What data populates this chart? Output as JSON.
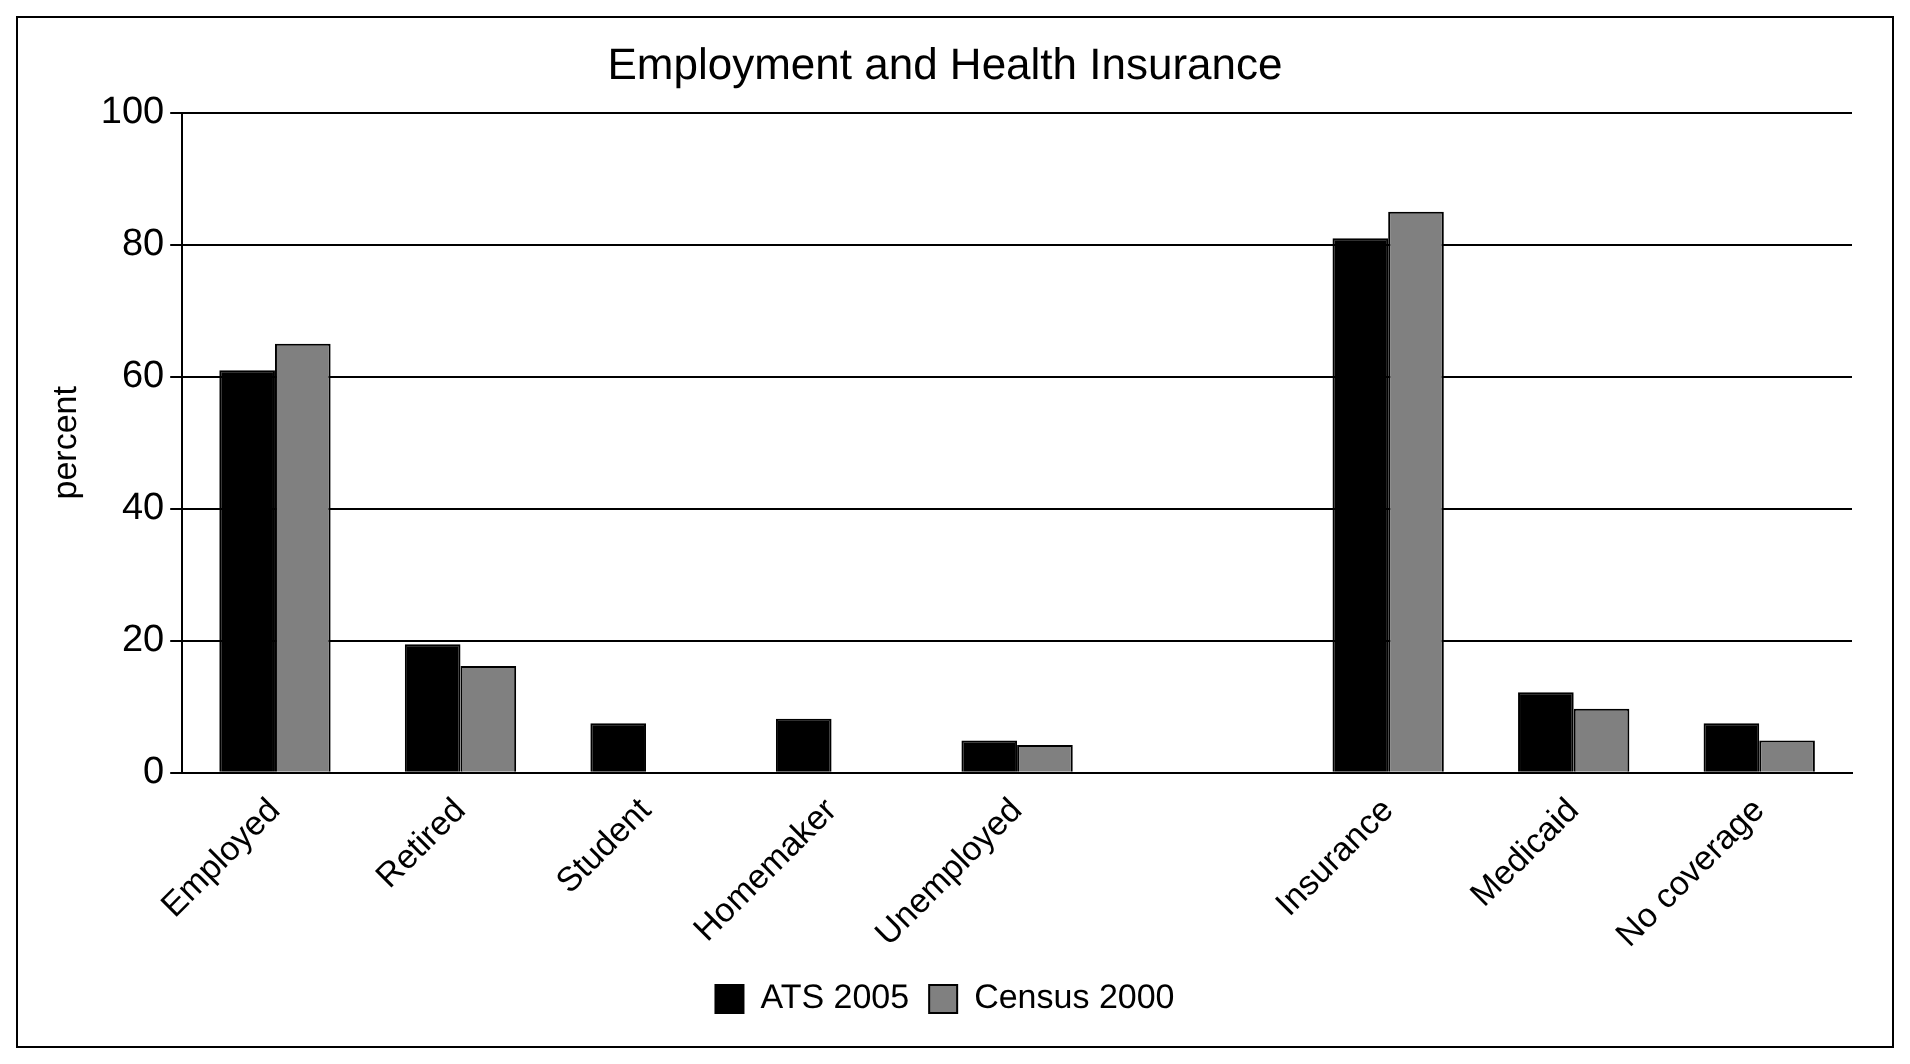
{
  "chart_data": {
    "type": "bar",
    "title": "Employment and Health Insurance",
    "ylabel": "percent",
    "categories": [
      "Employed",
      "Retired",
      "Student",
      "Homemaker",
      "Unemployed",
      null,
      "Insurance",
      "Medicaid",
      "No coverage"
    ],
    "series": [
      {
        "name": "ATS 2005",
        "color": "#000000",
        "values": [
          61,
          19.5,
          7.5,
          8.2,
          4.9,
          null,
          81,
          12.2,
          7.5
        ]
      },
      {
        "name": "Census 2000",
        "color": "#808080",
        "values": [
          65,
          16.2,
          null,
          null,
          4.2,
          null,
          85,
          9.7,
          4.9
        ]
      }
    ],
    "ylim": [
      0,
      100
    ],
    "yticks": [
      0,
      20,
      40,
      60,
      80,
      100
    ],
    "grid": "y",
    "legend": "bottom"
  }
}
